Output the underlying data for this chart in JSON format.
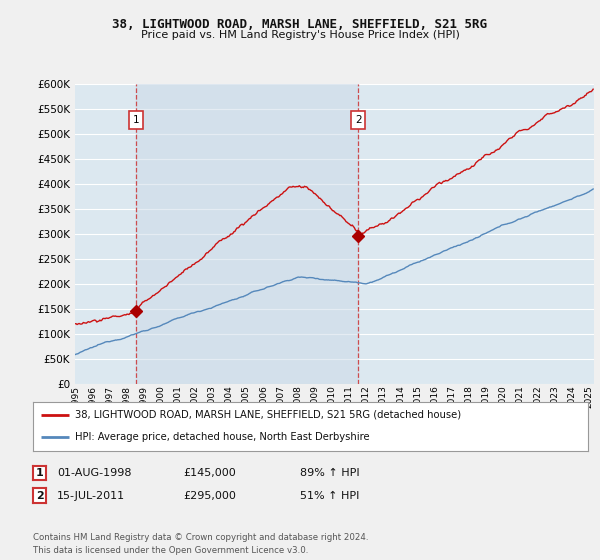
{
  "title": "38, LIGHTWOOD ROAD, MARSH LANE, SHEFFIELD, S21 5RG",
  "subtitle": "Price paid vs. HM Land Registry's House Price Index (HPI)",
  "legend_line1": "38, LIGHTWOOD ROAD, MARSH LANE, SHEFFIELD, S21 5RG (detached house)",
  "legend_line2": "HPI: Average price, detached house, North East Derbyshire",
  "footnote": "Contains HM Land Registry data © Crown copyright and database right 2024.\nThis data is licensed under the Open Government Licence v3.0.",
  "sale1_date": "01-AUG-1998",
  "sale1_price": "£145,000",
  "sale1_hpi": "89% ↑ HPI",
  "sale2_date": "15-JUL-2011",
  "sale2_price": "£295,000",
  "sale2_hpi": "51% ↑ HPI",
  "sale1_year": 1998.58,
  "sale2_year": 2011.54,
  "sale1_value": 145000,
  "sale2_value": 295000,
  "hpi_color": "#5588bb",
  "price_color": "#cc1111",
  "marker_color": "#aa0000",
  "bg_color": "#e8eef5",
  "plot_bg": "#dce8f0",
  "figure_bg": "#f0f0f0",
  "grid_color": "#ffffff",
  "shade_color": "#ccdae8",
  "ylim": [
    0,
    600000
  ],
  "xlim_start": 1995.0,
  "xlim_end": 2025.3
}
